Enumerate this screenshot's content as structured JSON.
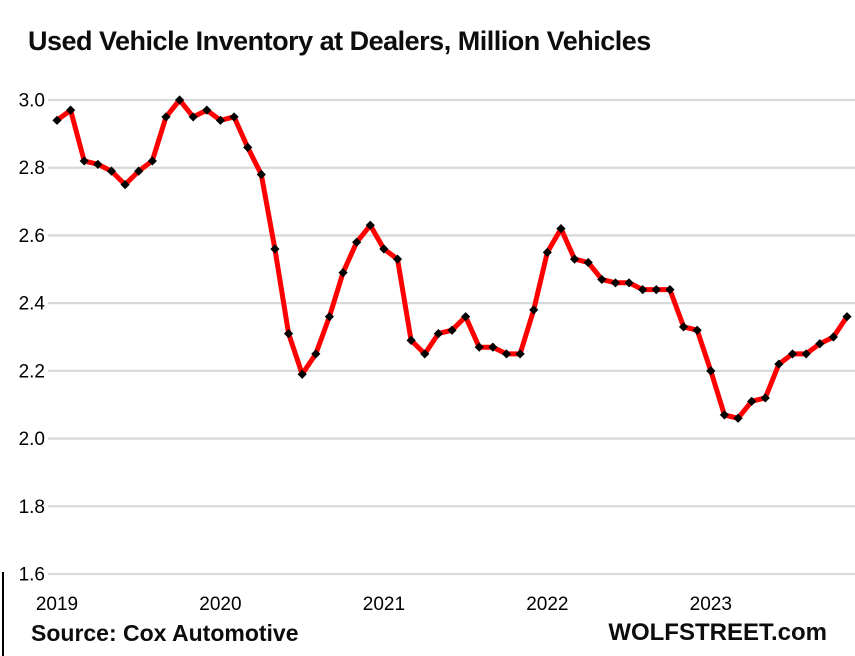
{
  "title": "Used Vehicle Inventory at Dealers, Million Vehicles",
  "footer": {
    "source": "Source: Cox Automotive",
    "brand": "WOLFSTREET.com"
  },
  "colors": {
    "line": "#fe0000",
    "marker": "#000000",
    "grid": "#d9d9d9",
    "text": "#000000",
    "axis_stub": "#000000",
    "background": "#ffffff"
  },
  "chart_data": {
    "type": "line",
    "title": "Used Vehicle Inventory at Dealers, Million Vehicles",
    "xlabel": "",
    "ylabel": "Million Vehicles",
    "frequency": "monthly",
    "x_start": "2019-01",
    "x_end": "2023-11",
    "x_tick_labels": [
      "2019",
      "2020",
      "2021",
      "2022",
      "2023"
    ],
    "y_ticks": [
      3.0,
      2.8,
      2.6,
      2.4,
      2.2,
      2.0,
      1.8,
      1.6
    ],
    "ylim": [
      1.6,
      3.0
    ],
    "grid": "horizontal",
    "legend": "none",
    "marker": "diamond",
    "series": [
      {
        "name": "Used vehicle inventory at dealers (million vehicles)",
        "values": [
          2.94,
          2.97,
          2.82,
          2.81,
          2.79,
          2.75,
          2.79,
          2.82,
          2.95,
          3.0,
          2.95,
          2.97,
          2.94,
          2.95,
          2.86,
          2.78,
          2.56,
          2.31,
          2.19,
          2.25,
          2.36,
          2.49,
          2.58,
          2.63,
          2.56,
          2.53,
          2.29,
          2.25,
          2.31,
          2.32,
          2.36,
          2.27,
          2.27,
          2.25,
          2.25,
          2.38,
          2.55,
          2.62,
          2.53,
          2.52,
          2.47,
          2.46,
          2.46,
          2.44,
          2.44,
          2.44,
          2.33,
          2.32,
          2.2,
          2.07,
          2.06,
          2.11,
          2.12,
          2.22,
          2.25,
          2.25,
          2.28,
          2.3,
          2.36
        ]
      }
    ]
  }
}
